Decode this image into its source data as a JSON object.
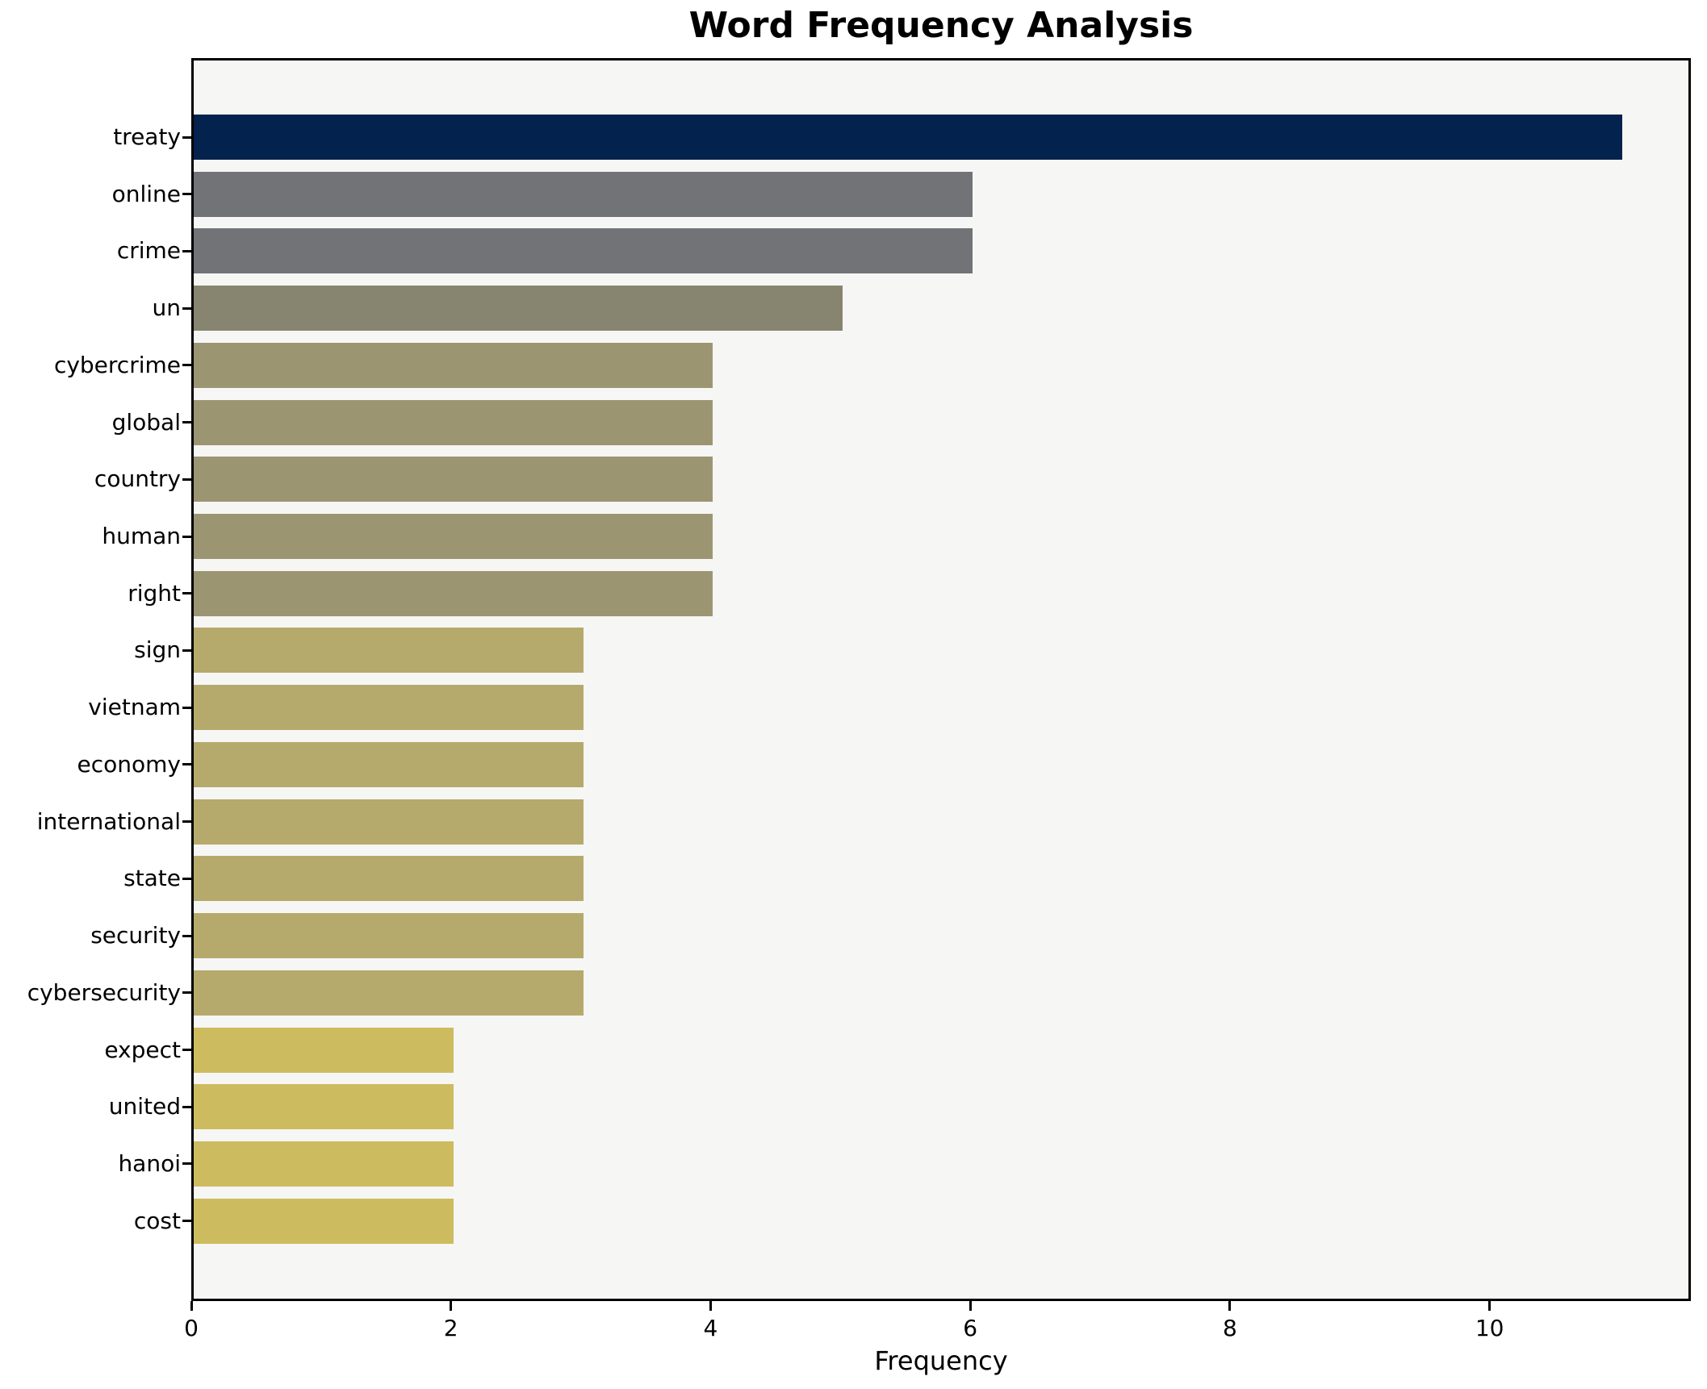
{
  "chart_data": {
    "type": "bar",
    "orientation": "horizontal",
    "title": "Word Frequency Analysis",
    "xlabel": "Frequency",
    "ylabel": "",
    "categories": [
      "treaty",
      "online",
      "crime",
      "un",
      "cybercrime",
      "global",
      "country",
      "human",
      "right",
      "sign",
      "vietnam",
      "economy",
      "international",
      "state",
      "security",
      "cybersecurity",
      "expect",
      "united",
      "hanoi",
      "cost"
    ],
    "values": [
      11,
      6,
      6,
      5,
      4,
      4,
      4,
      4,
      4,
      3,
      3,
      3,
      3,
      3,
      3,
      3,
      2,
      2,
      2,
      2
    ],
    "bar_colors": [
      "#03224e",
      "#717376",
      "#717376",
      "#87856f",
      "#9c9572",
      "#9c9572",
      "#9c9572",
      "#9c9572",
      "#9c9572",
      "#b5aa6b",
      "#b5aa6b",
      "#b5aa6b",
      "#b5aa6b",
      "#b5aa6b",
      "#b5aa6b",
      "#b5aa6b",
      "#cdbc5f",
      "#cdbc5f",
      "#cdbc5f",
      "#cdbc5f"
    ],
    "xticks": [
      0,
      2,
      4,
      6,
      8,
      10
    ],
    "xlim": [
      0,
      11.55
    ],
    "grid": false,
    "legend_position": "none",
    "plot_background": "#f6f6f5",
    "figure_background": "#ffffff",
    "spine_color": "#000000"
  }
}
